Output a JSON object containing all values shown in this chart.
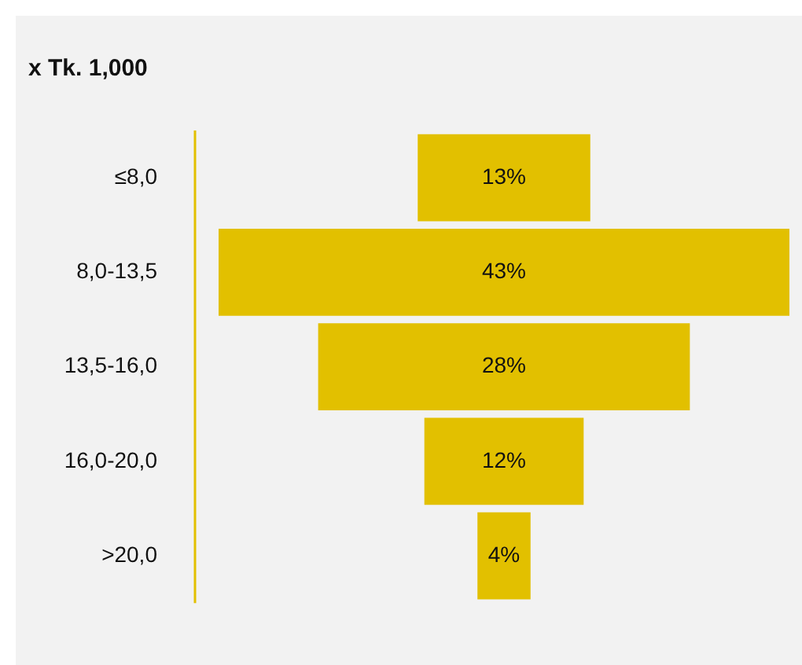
{
  "chart_data": {
    "type": "other",
    "title": "x Tk. 1,000",
    "categories": [
      "≤8,0",
      "8,0-13,5",
      "13,5-16,0",
      "16,0-20,0",
      ">20,0"
    ],
    "values": [
      13,
      43,
      28,
      12,
      4
    ],
    "value_labels": [
      "13%",
      "43%",
      "28%",
      "12%",
      "4%"
    ],
    "color": "#e2c000"
  }
}
